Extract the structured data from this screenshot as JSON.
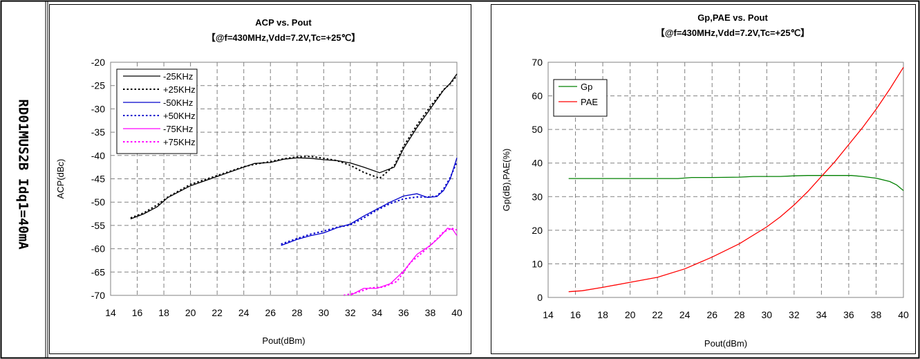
{
  "side_label": "RD01MUS2B Idq1=40mA",
  "chart_data": [
    {
      "type": "line",
      "title": "ACP vs. Pout",
      "subtitle": "【@f=430MHz,Vdd=7.2V,Tc=+25℃】",
      "xlabel": "Pout(dBm)",
      "ylabel": "ACP(dBc)",
      "xlim": [
        14,
        40
      ],
      "ylim": [
        -70,
        -20
      ],
      "xticks": [
        "14",
        "16",
        "18",
        "20",
        "22",
        "24",
        "26",
        "28",
        "30",
        "32",
        "34",
        "36",
        "38",
        "40"
      ],
      "yticks": [
        "-20",
        "-25",
        "-30",
        "-35",
        "-40",
        "-45",
        "-50",
        "-55",
        "-60",
        "-65",
        "-70"
      ],
      "grid": true,
      "legend_position": "top-left",
      "series": [
        {
          "name": "-25KHz",
          "color": "#000000",
          "dash": "solid",
          "x": [
            15.5,
            16.5,
            17.5,
            18.3,
            20,
            22,
            24,
            24.8,
            26,
            27,
            28,
            29,
            30,
            31,
            32,
            33,
            34.2,
            35.3,
            36,
            37,
            38,
            39,
            39.5,
            40
          ],
          "y": [
            -53.6,
            -52.5,
            -51,
            -49,
            -46.5,
            -44.5,
            -42.5,
            -41.7,
            -41.5,
            -40.8,
            -40.5,
            -40.6,
            -40.9,
            -41.1,
            -41.6,
            -42.5,
            -43.7,
            -42.5,
            -38.5,
            -34,
            -30,
            -26,
            -24.5,
            -22.5
          ]
        },
        {
          "name": "+25KHz",
          "color": "#000000",
          "dash": "dot",
          "x": [
            15.5,
            16.5,
            17.5,
            18.3,
            20,
            22,
            24,
            24.8,
            26,
            27,
            28,
            29,
            30,
            31,
            32,
            33,
            34.2,
            35.3,
            36,
            37,
            38,
            39,
            39.5,
            40
          ],
          "y": [
            -53.4,
            -52.3,
            -50.6,
            -48.9,
            -46.2,
            -44.3,
            -42.4,
            -41.9,
            -41.3,
            -40.7,
            -40.3,
            -40.2,
            -40.6,
            -41.1,
            -42.1,
            -43.6,
            -44.9,
            -42.2,
            -38,
            -33.5,
            -29.5,
            -25.9,
            -24.6,
            -22.9
          ]
        },
        {
          "name": "-50KHz",
          "color": "#0000cc",
          "dash": "solid",
          "x": [
            26.8,
            28,
            29,
            30,
            31,
            32,
            33,
            34,
            35,
            36,
            37,
            37.8,
            38.5,
            39,
            39.5,
            40
          ],
          "y": [
            -59.3,
            -58,
            -57.2,
            -56.6,
            -55.5,
            -54.7,
            -53,
            -51.5,
            -50,
            -48.7,
            -48.2,
            -49,
            -48.8,
            -47.5,
            -45,
            -40.5
          ]
        },
        {
          "name": "+50KHz",
          "color": "#0000cc",
          "dash": "dot",
          "x": [
            26.8,
            28,
            29,
            30,
            31,
            32,
            33,
            34,
            35,
            36,
            37,
            37.8,
            38.5,
            39,
            39.5,
            40
          ],
          "y": [
            -59,
            -57.8,
            -56.9,
            -56.2,
            -55.4,
            -54.9,
            -53.4,
            -51.7,
            -50.3,
            -49.3,
            -48.9,
            -48.9,
            -48.7,
            -47.2,
            -44.7,
            -41.4
          ]
        },
        {
          "name": "-75KHz",
          "color": "#ff00ff",
          "dash": "solid",
          "x": [
            32,
            33,
            34,
            35,
            36,
            37,
            38,
            38.7,
            39.3,
            39.7,
            40
          ],
          "y": [
            -70,
            -68.5,
            -68.5,
            -67.5,
            -64.8,
            -61.2,
            -59.3,
            -57.5,
            -55.6,
            -55.9,
            -57.2
          ]
        },
        {
          "name": "+75KHz",
          "color": "#ff00ff",
          "dash": "dot",
          "x": [
            31.5,
            32.5,
            33.5,
            34.5,
            35.5,
            36.5,
            37.5,
            38.3,
            39,
            39.6,
            40
          ],
          "y": [
            -70,
            -69.4,
            -68.4,
            -68.2,
            -67,
            -63,
            -60.6,
            -58.5,
            -56.4,
            -55.6,
            -56
          ]
        }
      ]
    },
    {
      "type": "line",
      "title": "Gp,PAE vs. Pout",
      "subtitle": "【@f=430MHz,Vdd=7.2V,Tc=+25℃】",
      "xlabel": "Pout(dBm)",
      "ylabel": "Gp(dB),PAE(%)",
      "xlim": [
        14,
        40
      ],
      "ylim": [
        0,
        70
      ],
      "xticks": [
        "14",
        "16",
        "18",
        "20",
        "22",
        "24",
        "26",
        "28",
        "30",
        "32",
        "34",
        "36",
        "38",
        "40"
      ],
      "yticks": [
        "0",
        "10",
        "20",
        "30",
        "40",
        "50",
        "60",
        "70"
      ],
      "grid": true,
      "legend_position": "top-left",
      "series": [
        {
          "name": "Gp",
          "color": "#008000",
          "dash": "solid",
          "x": [
            15.5,
            18,
            20,
            22,
            23.5,
            24.5,
            26,
            28,
            29,
            31,
            32,
            33,
            34,
            35,
            36.2,
            37,
            38,
            39,
            39.5,
            40
          ],
          "y": [
            35.4,
            35.4,
            35.4,
            35.4,
            35.4,
            35.7,
            35.7,
            35.8,
            36,
            36,
            36.2,
            36.3,
            36.3,
            36.3,
            36.3,
            36,
            35.5,
            34.5,
            33.5,
            31.8
          ]
        },
        {
          "name": "PAE",
          "color": "#ff0000",
          "dash": "solid",
          "x": [
            15.5,
            16.5,
            18,
            20,
            22,
            24,
            26,
            28,
            30,
            31,
            32,
            33,
            34,
            35,
            36,
            37,
            38,
            39,
            40
          ],
          "y": [
            1.7,
            2,
            3,
            4.5,
            6,
            8.5,
            12,
            16,
            21,
            24,
            27.5,
            31.5,
            36,
            40.5,
            45.5,
            50.5,
            56,
            62,
            68.5
          ]
        }
      ]
    }
  ]
}
